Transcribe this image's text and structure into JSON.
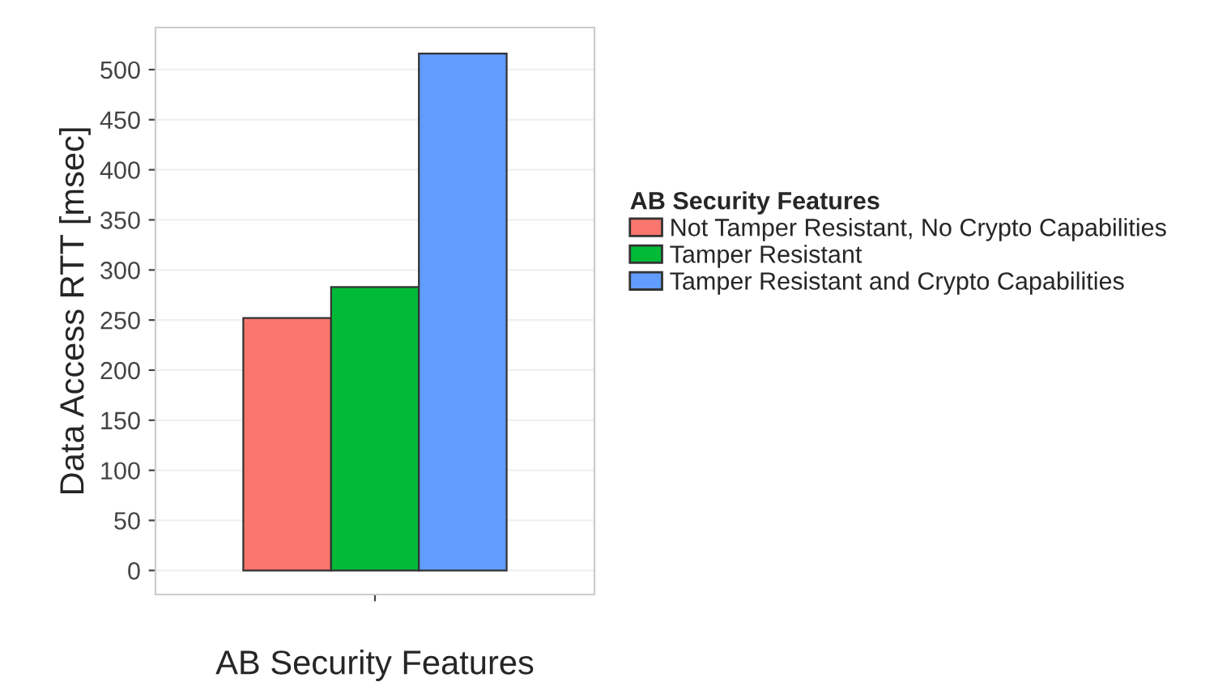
{
  "chart_data": {
    "type": "bar",
    "xlabel": "AB Security Features",
    "ylabel": "Data Access RTT [msec]",
    "legend_title": "AB Security Features",
    "categories": [
      null
    ],
    "series": [
      {
        "name": "Not Tamper Resistant, No Crypto Capabilities",
        "color": "#f8766d",
        "values": [
          252
        ]
      },
      {
        "name": "Tamper Resistant",
        "color": "#00ba38",
        "values": [
          283
        ]
      },
      {
        "name": "Tamper Resistant and Crypto Capabilities",
        "color": "#619cff",
        "values": [
          516
        ]
      }
    ],
    "ylim": [
      -24,
      542
    ],
    "yticks": [
      0,
      50,
      100,
      150,
      200,
      250,
      300,
      350,
      400,
      450,
      500
    ],
    "grid": "y",
    "legend": "right"
  }
}
